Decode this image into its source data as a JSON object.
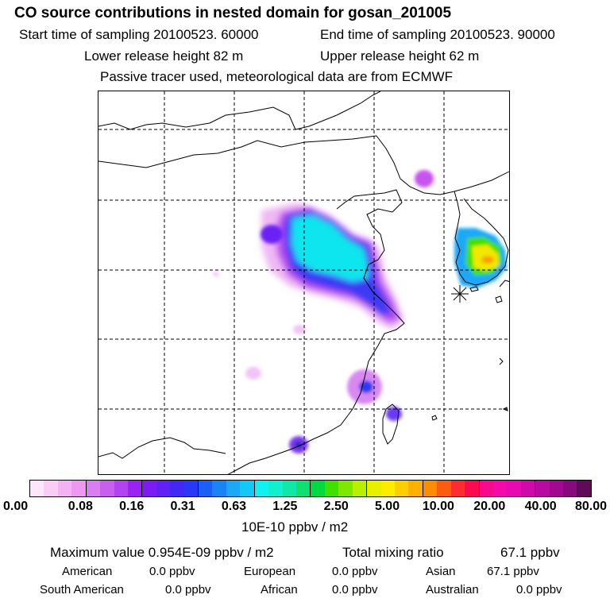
{
  "header": {
    "title": "CO  source contributions in nested domain for gosan_201005",
    "start_label": "Start time of sampling 20100523. 60000",
    "end_label": "End time of sampling 20100523. 90000",
    "lower_label": "Lower release height   82 m",
    "upper_label": "Upper release height   62 m",
    "tracer_note": "Passive tracer used, meteorological data are from ECMWF"
  },
  "colorbar": {
    "colors": [
      "#fde6fb",
      "#f9cdf6",
      "#f3b3f3",
      "#ed99f1",
      "#d97ef0",
      "#c95fef",
      "#b343f1",
      "#9a22f2",
      "#7a1cf3",
      "#6020f6",
      "#4128f5",
      "#2838f5",
      "#1a60f6",
      "#1a84f7",
      "#1aa8f7",
      "#12c8f6",
      "#10f1f1",
      "#10f0d0",
      "#10e8a8",
      "#10e070",
      "#00d940",
      "#40e000",
      "#7ee800",
      "#b8f000",
      "#e8f000",
      "#fcec00",
      "#fcd000",
      "#fcb000",
      "#fc8c00",
      "#fc5c10",
      "#fc2c30",
      "#fc0a50",
      "#f80a8c",
      "#f40aa8",
      "#e60ab0",
      "#d00aa8",
      "#b80aa0",
      "#a00a90",
      "#860a7c",
      "#600a58"
    ],
    "ticks": [
      "0.00",
      "0.08",
      "0.16",
      "0.31",
      "0.63",
      "1.25",
      "2.50",
      "5.00",
      "10.00",
      "20.00",
      "40.00",
      "80.00"
    ],
    "unit": "10E-10 ppbv / m2"
  },
  "summary": {
    "max_label": "Maximum value  0.954E-09 ppbv / m2",
    "total_label": "Total mixing ratio",
    "total_value": "67.1 ppbv",
    "american_label": "American",
    "american_value": "0.0 ppbv",
    "european_label": "European",
    "european_value": "0.0 ppbv",
    "asian_label": "Asian",
    "asian_value": "67.1 ppbv",
    "south_american_label": "South American",
    "south_american_value": "0.0 ppbv",
    "african_label": "African",
    "african_value": "0.0 ppbv",
    "australian_label": "Australian",
    "australian_value": "0.0 ppbv"
  }
}
